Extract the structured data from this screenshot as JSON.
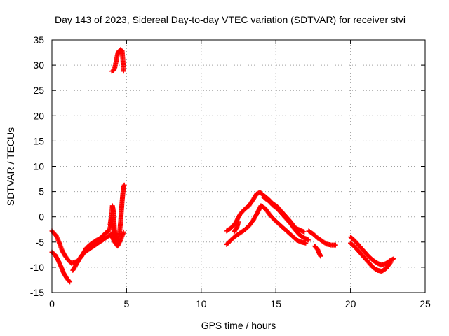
{
  "chart_data": {
    "type": "scatter",
    "title": "Day 143 of 2023, Sidereal Day-to-day VTEC variation (SDTVAR) for receiver stvi",
    "xlabel": "GPS time / hours",
    "ylabel": "SDTVAR / TECUs",
    "xlim": [
      0,
      25
    ],
    "ylim": [
      -15,
      35
    ],
    "x_ticks": [
      0,
      5,
      10,
      15,
      20,
      25
    ],
    "x_tick_labels": [
      "0",
      "5",
      "10",
      "15",
      "20",
      "25"
    ],
    "y_ticks": [
      -15,
      -10,
      -5,
      0,
      5,
      10,
      15,
      20,
      25,
      30,
      35
    ],
    "y_tick_labels": [
      "-15",
      "-10",
      "-5",
      "0",
      "5",
      "10",
      "15",
      "20",
      "25",
      "30",
      "35"
    ],
    "grid": true,
    "marker": "plus",
    "color": "#ff0000",
    "series": [
      {
        "name": "seg-a-upper",
        "x": [
          0,
          0.3,
          0.5,
          0.7,
          0.9,
          1.1,
          1.3,
          1.5,
          1.7,
          2.0,
          2.3,
          2.6,
          2.9,
          3.2,
          3.4,
          3.6,
          3.8,
          3.9,
          4.0,
          4.1,
          4.2,
          4.3
        ],
        "y": [
          -2.8,
          -3.8,
          -5.2,
          -6.8,
          -7.8,
          -8.6,
          -9.2,
          -9.0,
          -8.8,
          -7.8,
          -6.2,
          -5.4,
          -4.8,
          -4.3,
          -3.8,
          -3.2,
          -2.8,
          -2.0,
          -1.2,
          -1.8,
          -3.0,
          -4.0
        ]
      },
      {
        "name": "seg-a-lower",
        "x": [
          0,
          0.2,
          0.4,
          0.6,
          0.8,
          1.0,
          1.2
        ],
        "y": [
          -7.0,
          -7.5,
          -8.5,
          -9.8,
          -11.2,
          -12.2,
          -12.9
        ]
      },
      {
        "name": "seg-a-inner",
        "x": [
          1.4,
          1.6,
          1.8,
          2.0,
          2.3,
          2.6,
          2.9,
          3.2,
          3.5,
          3.8,
          4.0,
          4.2
        ],
        "y": [
          -10.6,
          -9.6,
          -8.6,
          -7.6,
          -6.8,
          -6.2,
          -5.6,
          -5.0,
          -4.4,
          -3.8,
          -3.4,
          -2.8
        ]
      },
      {
        "name": "seg-a-spike",
        "x": [
          3.9,
          4.0,
          4.05,
          4.1,
          4.15,
          4.2,
          4.3
        ],
        "y": [
          -1.5,
          0.5,
          2.2,
          1.5,
          -0.5,
          -3.2,
          -5.5
        ]
      },
      {
        "name": "seg-a-rise",
        "x": [
          4.3,
          4.4,
          4.5,
          4.55,
          4.6,
          4.65,
          4.7,
          4.75,
          4.8,
          4.85
        ],
        "y": [
          -5.2,
          -4.6,
          -3.8,
          -2.6,
          -1.0,
          1.0,
          3.0,
          4.6,
          5.8,
          6.3
        ]
      },
      {
        "name": "seg-a-lower2",
        "x": [
          4.0,
          4.2,
          4.4,
          4.6,
          4.8
        ],
        "y": [
          -3.8,
          -5.0,
          -5.8,
          -4.6,
          -3.0
        ]
      },
      {
        "name": "seg-top",
        "x": [
          4.0,
          4.1,
          4.2,
          4.3,
          4.4,
          4.5,
          4.6,
          4.7,
          4.75,
          4.8
        ],
        "y": [
          28.8,
          28.9,
          29.3,
          30.8,
          32.2,
          32.8,
          33.1,
          32.8,
          31.2,
          28.8
        ]
      },
      {
        "name": "seg-b-upper",
        "x": [
          11.7,
          12.0,
          12.3,
          12.6,
          12.9,
          13.2,
          13.5,
          13.7,
          13.9,
          14.0,
          14.2,
          14.5,
          14.8,
          15.1,
          15.4,
          15.7,
          16.0,
          16.3,
          16.6,
          16.9
        ],
        "y": [
          -2.8,
          -2.2,
          -1.2,
          0.5,
          1.5,
          2.2,
          3.5,
          4.5,
          4.8,
          4.7,
          4.2,
          3.5,
          2.6,
          2.0,
          1.0,
          0.0,
          -1.0,
          -2.2,
          -2.6,
          -3.0
        ]
      },
      {
        "name": "seg-b-lower",
        "x": [
          11.7,
          12.0,
          12.3,
          12.6,
          12.9,
          13.2,
          13.5,
          13.8,
          14.0,
          14.3,
          14.6,
          14.9,
          15.2,
          15.5,
          15.8,
          16.1,
          16.4,
          16.7,
          17.0
        ],
        "y": [
          -5.5,
          -4.6,
          -3.8,
          -3.2,
          -2.6,
          -1.8,
          -0.6,
          1.0,
          2.2,
          1.6,
          0.4,
          -0.6,
          -1.4,
          -2.2,
          -3.0,
          -3.8,
          -4.6,
          -5.0,
          -5.2
        ]
      },
      {
        "name": "seg-b-mid",
        "x": [
          14.2,
          14.5,
          14.8,
          15.1,
          15.4,
          15.7,
          16.0,
          16.3,
          16.6,
          16.9,
          17.2
        ],
        "y": [
          3.8,
          3.2,
          2.3,
          1.6,
          0.6,
          -0.4,
          -1.4,
          -2.6,
          -3.6,
          -4.2,
          -4.6
        ]
      },
      {
        "name": "seg-b-small",
        "x": [
          12.2,
          12.4,
          12.5
        ],
        "y": [
          -3.0,
          -2.0,
          -1.0
        ]
      },
      {
        "name": "seg-b-tail",
        "x": [
          17.6,
          17.8,
          17.9,
          18.0
        ],
        "y": [
          -5.8,
          -6.5,
          -7.2,
          -7.8
        ]
      },
      {
        "name": "seg-b-end",
        "x": [
          17.2,
          17.5,
          17.8,
          18.1,
          18.4,
          18.7,
          19.0
        ],
        "y": [
          -2.8,
          -3.4,
          -4.2,
          -4.8,
          -5.4,
          -5.6,
          -5.6
        ]
      },
      {
        "name": "seg-c-upper",
        "x": [
          20.0,
          20.3,
          20.6,
          20.9,
          21.2,
          21.5,
          21.8,
          22.1,
          22.4,
          22.7,
          22.9
        ],
        "y": [
          -4.0,
          -4.8,
          -5.8,
          -6.8,
          -7.8,
          -8.6,
          -9.2,
          -9.6,
          -9.2,
          -8.6,
          -8.3
        ]
      },
      {
        "name": "seg-c-lower",
        "x": [
          20.0,
          20.3,
          20.6,
          20.9,
          21.2,
          21.5,
          21.8,
          22.1,
          22.4,
          22.7
        ],
        "y": [
          -5.2,
          -6.0,
          -7.0,
          -8.0,
          -9.0,
          -10.0,
          -10.6,
          -10.8,
          -10.2,
          -9.0
        ]
      }
    ]
  }
}
